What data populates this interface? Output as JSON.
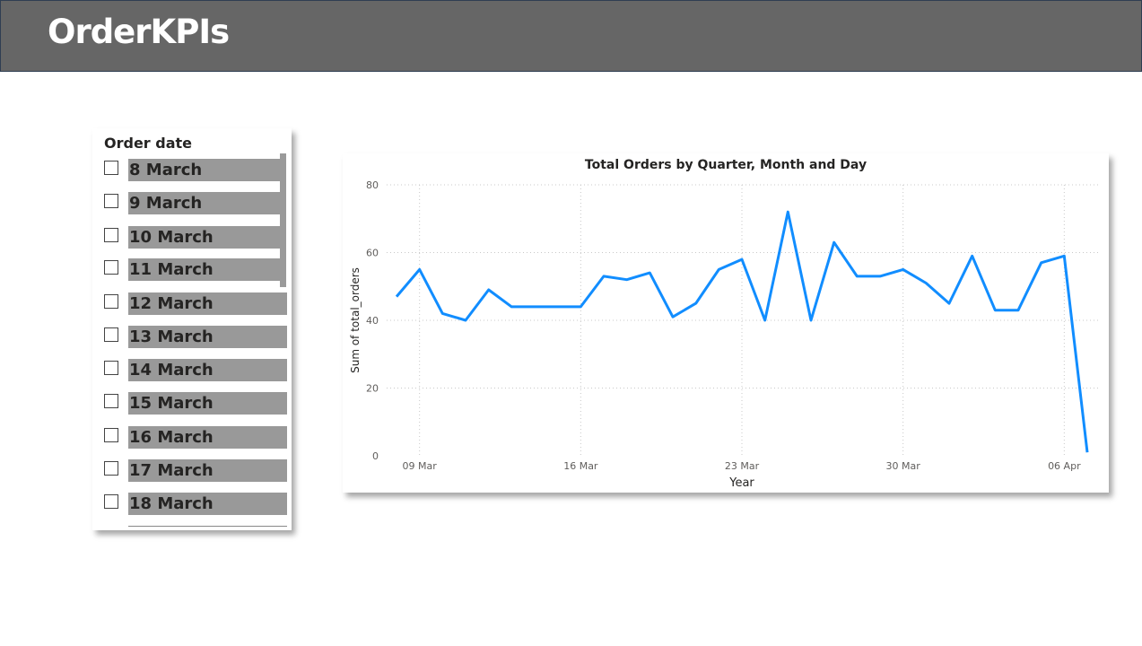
{
  "app": {
    "title": "OrderKPIs"
  },
  "slicer": {
    "title": "Order date",
    "items": [
      {
        "label": "8 March"
      },
      {
        "label": "9 March"
      },
      {
        "label": "10 March"
      },
      {
        "label": "11 March"
      },
      {
        "label": "12 March"
      },
      {
        "label": "13 March"
      },
      {
        "label": "14 March"
      },
      {
        "label": "15 March"
      },
      {
        "label": "16 March"
      },
      {
        "label": "17 March"
      },
      {
        "label": "18 March"
      }
    ]
  },
  "colors": {
    "header_bg": "#666666",
    "line": "#118DFF",
    "item_bg": "#999999"
  },
  "chart_data": {
    "type": "line",
    "title": "Total Orders by Quarter, Month and Day",
    "xlabel": "Year",
    "ylabel": "Sum of total_orders",
    "x_ticks": [
      {
        "date": "2024-03-09",
        "label": "09 Mar"
      },
      {
        "date": "2024-03-16",
        "label": "16 Mar"
      },
      {
        "date": "2024-03-23",
        "label": "23 Mar"
      },
      {
        "date": "2024-03-30",
        "label": "30 Mar"
      },
      {
        "date": "2024-04-06",
        "label": "06 Apr"
      }
    ],
    "ylim": [
      0,
      80
    ],
    "y_ticks": [
      0,
      20,
      40,
      60,
      80
    ],
    "grid": true,
    "series": [
      {
        "x": [
          "2024-03-08",
          "2024-03-09",
          "2024-03-10",
          "2024-03-11",
          "2024-03-12",
          "2024-03-13",
          "2024-03-14",
          "2024-03-15",
          "2024-03-16",
          "2024-03-17",
          "2024-03-18",
          "2024-03-19",
          "2024-03-20",
          "2024-03-21",
          "2024-03-22",
          "2024-03-23",
          "2024-03-24",
          "2024-03-25",
          "2024-03-26",
          "2024-03-27",
          "2024-03-28",
          "2024-03-29",
          "2024-03-30",
          "2024-03-31",
          "2024-04-01",
          "2024-04-02",
          "2024-04-03",
          "2024-04-04",
          "2024-04-05",
          "2024-04-06",
          "2024-04-07"
        ],
        "values": [
          47,
          55,
          42,
          40,
          49,
          44,
          44,
          44,
          44,
          53,
          52,
          54,
          41,
          45,
          55,
          58,
          40,
          72,
          40,
          63,
          53,
          53,
          55,
          51,
          45,
          59,
          43,
          43,
          57,
          59,
          1
        ]
      }
    ]
  }
}
